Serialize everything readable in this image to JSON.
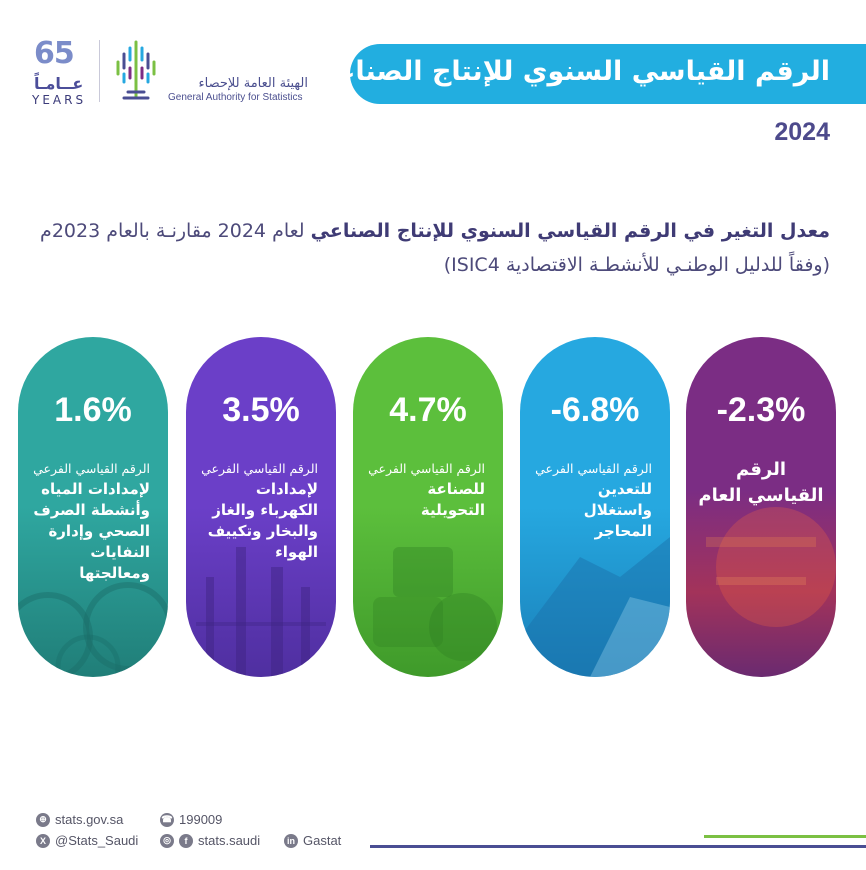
{
  "branding": {
    "anniversary_number": "65",
    "anniversary_ar": "عــامـاً",
    "anniversary_en": "YEARS",
    "org_name_ar": "الهيئة العامة للإحصاء",
    "org_name_en": "General Authority for Statistics"
  },
  "header": {
    "title": "الرقم القياسي السنوي للإنتاج الصناعي",
    "year": "2024"
  },
  "subtitle": {
    "bold": "معدل التغير في الرقم القياسي السنوي للإنتاج الصناعي",
    "rest": "لعام 2024 مقارنـة بالعام 2023م",
    "line2": "(وفقاً للدليل الوطنـي للأنشطـة الاقتصادية ISIC4)"
  },
  "cards": [
    {
      "value": "-2.3%",
      "sublabel": "",
      "label": "الرقم القياسي العام",
      "color": "#7b2d84"
    },
    {
      "value": "-6.8%",
      "sublabel": "الرقم القياسي الفرعي",
      "label": "للتعدين واستغلال المحاجر",
      "color": "#26a8e0"
    },
    {
      "value": "4.7%",
      "sublabel": "الرقم القياسي الفرعي",
      "label": "للصناعة التحويلية",
      "color": "#5cbf3c"
    },
    {
      "value": "3.5%",
      "sublabel": "الرقم القياسي الفرعي",
      "label": "لإمدادات الكهرباء والغاز والبخار وتكييف الهواء",
      "color": "#6b3fc8"
    },
    {
      "value": "1.6%",
      "sublabel": "الرقم القياسي الفرعي",
      "label": "لإمدادات المياه وأنشطة الصرف الصحي وإدارة النفايات ومعالجتها",
      "color": "#2fa7a0"
    }
  ],
  "footer": {
    "website": "stats.gov.sa",
    "phone": "199009",
    "twitter": "@Stats_Saudi",
    "social": "stats.saudi",
    "linkedin": "Gastat"
  },
  "icons": {
    "website": "globe-icon",
    "phone": "phone-icon",
    "twitter": "x-icon",
    "instagram": "instagram-icon",
    "facebook": "facebook-icon",
    "linkedin": "linkedin-icon"
  },
  "colors": {
    "banner": "#22aee0",
    "banner_accent": "#8bd3ef",
    "navy": "#4a4e93",
    "green": "#7bc043"
  }
}
